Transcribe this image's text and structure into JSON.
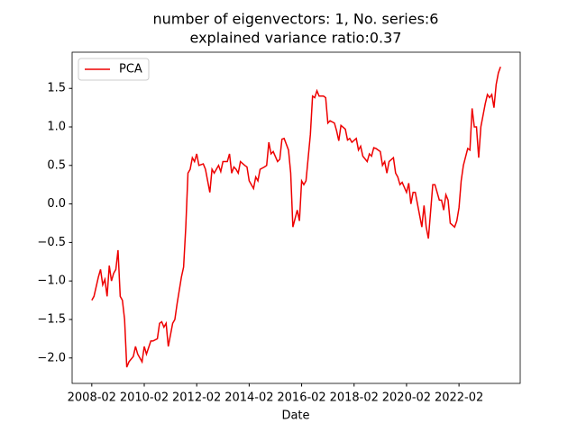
{
  "chart_data": {
    "type": "line",
    "title": [
      "number of eigenvectors: 1, No. series:6",
      "explained variance ratio:0.37"
    ],
    "xlabel": "Date",
    "x": [
      "2008-02",
      "2008-03",
      "2008-05",
      "2008-06",
      "2008-07",
      "2008-08",
      "2008-09",
      "2008-10",
      "2008-11",
      "2008-12",
      "2009-01",
      "2009-02",
      "2009-03",
      "2009-04",
      "2009-05",
      "2009-06",
      "2009-07",
      "2009-09",
      "2009-10",
      "2009-11",
      "2010-01",
      "2010-02",
      "2010-03",
      "2010-05",
      "2010-06",
      "2010-08",
      "2010-09",
      "2010-10",
      "2010-11",
      "2010-12",
      "2011-01",
      "2011-03",
      "2011-04",
      "2011-05",
      "2011-07",
      "2011-08",
      "2011-09",
      "2011-10",
      "2011-11",
      "2011-12",
      "2012-01",
      "2012-02",
      "2012-03",
      "2012-05",
      "2012-06",
      "2012-07",
      "2012-08",
      "2012-09",
      "2012-10",
      "2012-12",
      "2013-01",
      "2013-02",
      "2013-04",
      "2013-05",
      "2013-06",
      "2013-07",
      "2013-08",
      "2013-09",
      "2013-10",
      "2013-12",
      "2014-01",
      "2014-02",
      "2014-04",
      "2014-05",
      "2014-06",
      "2014-07",
      "2014-09",
      "2014-10",
      "2014-11",
      "2014-12",
      "2015-01",
      "2015-03",
      "2015-04",
      "2015-05",
      "2015-06",
      "2015-08",
      "2015-09",
      "2015-10",
      "2015-12",
      "2016-01",
      "2016-02",
      "2016-03",
      "2016-04",
      "2016-06",
      "2016-07",
      "2016-08",
      "2016-09",
      "2016-10",
      "2016-12",
      "2017-01",
      "2017-02",
      "2017-03",
      "2017-05",
      "2017-06",
      "2017-07",
      "2017-08",
      "2017-10",
      "2017-11",
      "2017-12",
      "2018-01",
      "2018-03",
      "2018-04",
      "2018-05",
      "2018-06",
      "2018-08",
      "2018-09",
      "2018-10",
      "2018-11",
      "2018-12",
      "2019-02",
      "2019-03",
      "2019-04",
      "2019-05",
      "2019-06",
      "2019-08",
      "2019-09",
      "2019-10",
      "2019-11",
      "2019-12",
      "2020-02",
      "2020-03",
      "2020-04",
      "2020-05",
      "2020-06",
      "2020-08",
      "2020-09",
      "2020-10",
      "2020-11",
      "2020-12",
      "2021-01",
      "2021-02",
      "2021-03",
      "2021-05",
      "2021-06",
      "2021-07",
      "2021-08",
      "2021-09",
      "2021-10",
      "2021-12",
      "2022-01",
      "2022-02",
      "2022-03",
      "2022-04",
      "2022-06",
      "2022-07",
      "2022-08",
      "2022-09",
      "2022-10",
      "2022-11",
      "2022-12",
      "2023-02",
      "2023-03",
      "2023-04",
      "2023-05",
      "2023-06",
      "2023-07",
      "2023-08",
      "2023-09"
    ],
    "series": [
      {
        "name": "PCA",
        "color": "#ee0000",
        "values": [
          -1.25,
          -1.2,
          -0.95,
          -0.85,
          -1.05,
          -0.98,
          -1.2,
          -0.8,
          -1.0,
          -0.9,
          -0.85,
          -0.6,
          -1.2,
          -1.25,
          -1.5,
          -2.12,
          -2.05,
          -1.98,
          -1.85,
          -1.95,
          -2.05,
          -1.85,
          -1.95,
          -1.78,
          -1.78,
          -1.75,
          -1.55,
          -1.53,
          -1.6,
          -1.55,
          -1.85,
          -1.55,
          -1.5,
          -1.3,
          -0.95,
          -0.82,
          -0.3,
          0.4,
          0.45,
          0.6,
          0.55,
          0.65,
          0.5,
          0.52,
          0.45,
          0.3,
          0.15,
          0.45,
          0.4,
          0.5,
          0.42,
          0.55,
          0.55,
          0.65,
          0.4,
          0.48,
          0.45,
          0.4,
          0.55,
          0.5,
          0.48,
          0.3,
          0.2,
          0.35,
          0.3,
          0.45,
          0.48,
          0.5,
          0.8,
          0.65,
          0.68,
          0.55,
          0.58,
          0.84,
          0.85,
          0.7,
          0.4,
          -0.3,
          -0.08,
          -0.22,
          0.3,
          0.25,
          0.3,
          0.9,
          1.4,
          1.38,
          1.47,
          1.4,
          1.4,
          1.38,
          1.05,
          1.08,
          1.05,
          0.95,
          0.82,
          1.02,
          0.97,
          0.83,
          0.85,
          0.8,
          0.85,
          0.7,
          0.75,
          0.62,
          0.55,
          0.65,
          0.62,
          0.73,
          0.72,
          0.68,
          0.5,
          0.55,
          0.4,
          0.55,
          0.6,
          0.4,
          0.35,
          0.25,
          0.28,
          0.15,
          0.27,
          0.0,
          0.15,
          0.15,
          -0.15,
          -0.3,
          -0.02,
          -0.3,
          -0.45,
          -0.1,
          0.25,
          0.25,
          0.05,
          0.05,
          -0.08,
          0.12,
          0.05,
          -0.25,
          -0.3,
          -0.22,
          -0.05,
          0.3,
          0.5,
          0.72,
          0.7,
          1.24,
          1.0,
          1.0,
          0.6,
          1.0,
          1.3,
          1.42,
          1.38,
          1.42,
          1.25,
          1.55,
          1.7,
          1.78
        ]
      }
    ],
    "xlim": [
      "2007-05",
      "2024-06"
    ],
    "xticks": [
      "2008-02",
      "2010-02",
      "2012-02",
      "2014-02",
      "2016-02",
      "2018-02",
      "2020-02",
      "2022-02"
    ],
    "ylim": [
      -2.33,
      1.97
    ],
    "yticks": [
      {
        "value": -2,
        "label": "−2.0"
      },
      {
        "value": -1.5,
        "label": "−1.5"
      },
      {
        "value": -1,
        "label": "−1.0"
      },
      {
        "value": -0.5,
        "label": "−0.5"
      },
      {
        "value": 0,
        "label": "0.0"
      },
      0.5,
      {
        "value": 1,
        "label": "1.0"
      },
      1.5
    ],
    "legend": "upper left"
  }
}
